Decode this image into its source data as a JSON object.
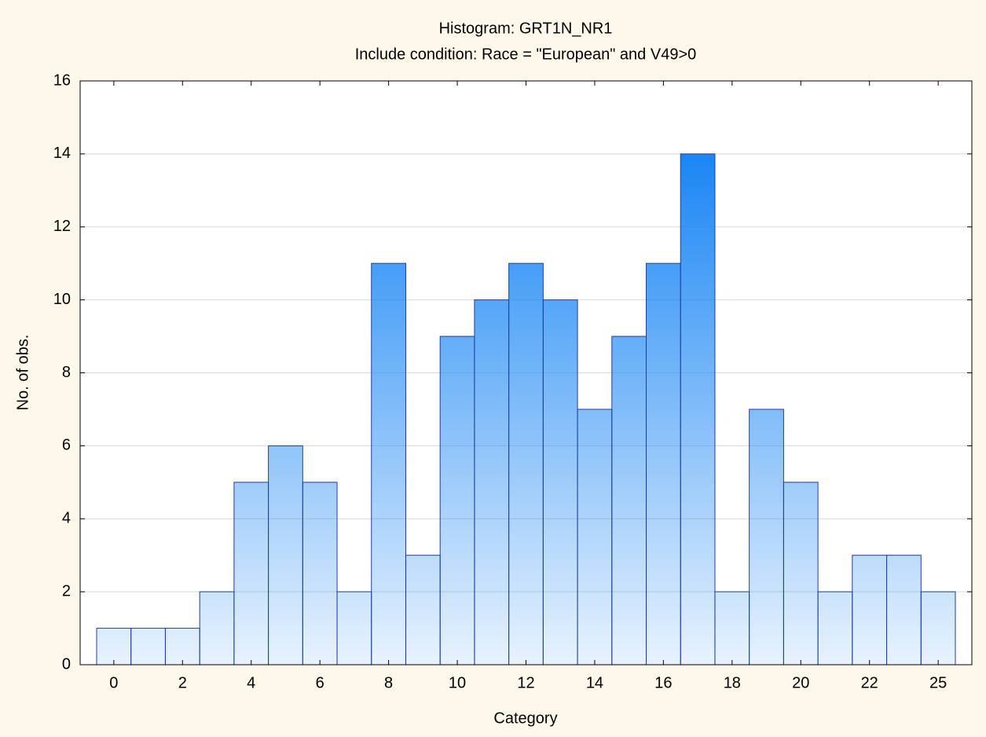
{
  "chart_data": {
    "type": "bar",
    "title": "Histogram: GRT1N_NR1",
    "subtitle": "Include condition: Race = \"European\" and V49>0",
    "x_label": "Category",
    "y_label": "No. of obs.",
    "categories": [
      "0",
      null,
      "2",
      null,
      "4",
      null,
      "6",
      null,
      "8",
      null,
      "10",
      null,
      "12",
      null,
      "14",
      null,
      "16",
      null,
      "18",
      null,
      "20",
      null,
      "22",
      null,
      "25"
    ],
    "values": [
      1,
      1,
      1,
      2,
      5,
      6,
      5,
      2,
      11,
      3,
      9,
      10,
      11,
      10,
      7,
      9,
      11,
      14,
      2,
      7,
      5,
      2,
      3,
      3,
      2
    ],
    "color": "#1a86f4",
    "ylim": [
      0,
      16
    ],
    "yticks": [
      0,
      2,
      4,
      6,
      8,
      10,
      12,
      14,
      16
    ],
    "grid": true
  }
}
